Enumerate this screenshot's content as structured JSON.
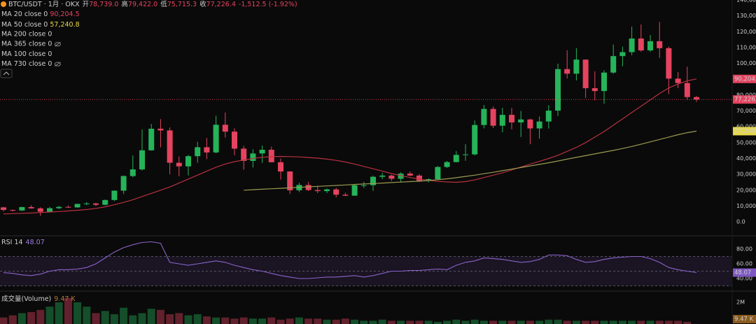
{
  "header": {
    "symbol": "BTC/USDT · 1月 · OKX",
    "open_label": "开",
    "open": "78,739.0",
    "high_label": "高",
    "high": "79,422.0",
    "low_label": "低",
    "low": "75,715.3",
    "close_label": "收",
    "close": "77,226.4",
    "change": "-1,512.5 (-1.92%)"
  },
  "chart_data": [
    {
      "type": "candlestick",
      "open": [
        9150,
        7540,
        7190,
        9350,
        8520,
        6410,
        8620,
        9450,
        9140,
        11330,
        11650,
        10780,
        13790,
        19700,
        28920,
        33110,
        45160,
        58800,
        57720,
        37300,
        35040,
        41460,
        47100,
        43820,
        61300,
        56950,
        46210,
        38470,
        43160,
        45510,
        37630,
        31800,
        19940,
        23290,
        20050,
        19420,
        20490,
        17160,
        16540,
        23120,
        23150,
        28450,
        29230,
        27210,
        30470,
        29230,
        25940,
        26960,
        34640,
        37720,
        42280,
        42580,
        61130,
        71280,
        60670,
        67540,
        62770,
        64620,
        58970,
        63330,
        70200,
        96400,
        93500,
        102400,
        84350,
        82550,
        94200,
        104600,
        107100,
        115700,
        108200,
        114000,
        109600,
        90400,
        87600,
        78739.0
      ],
      "high": [
        9510,
        7750,
        9580,
        10500,
        9190,
        9460,
        10080,
        10380,
        11440,
        12470,
        12070,
        14100,
        19860,
        29300,
        41950,
        58350,
        61790,
        64850,
        59600,
        41300,
        42300,
        50500,
        52950,
        67000,
        69000,
        59050,
        47990,
        45820,
        48190,
        47440,
        40000,
        31960,
        24670,
        25200,
        22800,
        21080,
        21480,
        18390,
        23960,
        25250,
        29190,
        31000,
        29820,
        31390,
        31800,
        30240,
        27480,
        35200,
        38450,
        44700,
        48970,
        64000,
        73800,
        72800,
        71980,
        71960,
        70000,
        65100,
        66500,
        73620,
        99800,
        108300,
        109600,
        102500,
        95000,
        95750,
        111900,
        110500,
        123200,
        124500,
        117900,
        126200,
        110600,
        94600,
        97900,
        79422.0
      ],
      "low": [
        6520,
        6430,
        6870,
        8450,
        3800,
        6150,
        8100,
        8830,
        8900,
        10520,
        9880,
        10370,
        13200,
        17570,
        28130,
        32300,
        44960,
        47000,
        30000,
        28800,
        29280,
        37330,
        39600,
        43280,
        53250,
        42000,
        32900,
        34300,
        37170,
        37580,
        26700,
        17600,
        18780,
        19520,
        18130,
        18190,
        15480,
        16270,
        16500,
        21350,
        19550,
        26940,
        25810,
        24800,
        28860,
        25170,
        24900,
        26550,
        34100,
        37600,
        38550,
        41880,
        59000,
        59190,
        56550,
        58400,
        53550,
        49000,
        52550,
        58900,
        66800,
        90500,
        89200,
        78200,
        76600,
        74500,
        93400,
        98200,
        105200,
        107300,
        107200,
        103500,
        80600,
        84400,
        77000,
        75715.3
      ],
      "close": [
        7540,
        7190,
        9350,
        8520,
        6410,
        8620,
        9450,
        9140,
        11330,
        11650,
        10780,
        13790,
        19700,
        28920,
        33110,
        45160,
        58800,
        57720,
        37300,
        35040,
        41460,
        47100,
        43820,
        61300,
        56950,
        46210,
        38470,
        43160,
        45510,
        37630,
        31800,
        19940,
        23290,
        20050,
        19420,
        20490,
        17160,
        16540,
        23120,
        23150,
        28450,
        29230,
        27210,
        30470,
        29230,
        25940,
        26960,
        34640,
        37720,
        42280,
        42580,
        61130,
        71280,
        60670,
        67540,
        62770,
        64620,
        58970,
        63330,
        70200,
        96400,
        93500,
        102400,
        84350,
        82550,
        94200,
        104600,
        107100,
        115700,
        108200,
        114000,
        109600,
        90400,
        87600,
        78739,
        77226.4
      ],
      "up_color": "#26b35a",
      "down_color": "#e5435f",
      "ylim": [
        -8800,
        140000
      ],
      "yticks": [
        {
          "value": 0,
          "label": "0.0"
        },
        {
          "value": 10000,
          "label": "10,000"
        },
        {
          "value": 20000,
          "label": "20,000"
        },
        {
          "value": 30000,
          "label": "30,000"
        },
        {
          "value": 40000,
          "label": "40,000"
        },
        {
          "value": 50000,
          "label": "50,000"
        },
        {
          "value": 60000,
          "label": "60,000"
        },
        {
          "value": 70000,
          "label": "70,000"
        },
        {
          "value": 80000,
          "label": "80,000"
        },
        {
          "value": 90000,
          "label": "90,000"
        },
        {
          "value": 100000,
          "label": "100,000"
        },
        {
          "value": 110000,
          "label": "110,000"
        },
        {
          "value": 120000,
          "label": "120,000"
        },
        {
          "value": 130000,
          "label": "130,000"
        },
        {
          "value": 140000,
          "label": "140,000"
        }
      ],
      "grid": false,
      "series": [
        {
          "name": "MA 20 close 0",
          "value_label": "90,204.5",
          "color": "#b8313f",
          "tag_color": "#e5435f",
          "values": [
            5000,
            5200,
            5400,
            5600,
            5900,
            6200,
            6500,
            6900,
            7300,
            7800,
            8500,
            9500,
            10800,
            12300,
            14000,
            16000,
            18000,
            20000,
            22000,
            24500,
            27000,
            29500,
            32000,
            34500,
            36500,
            38000,
            39000,
            40000,
            40800,
            41200,
            41300,
            41200,
            41000,
            40600,
            40200,
            39600,
            38800,
            37800,
            36500,
            35000,
            33500,
            32000,
            30500,
            29200,
            28000,
            27000,
            26200,
            25600,
            25200,
            25000,
            25400,
            26500,
            28000,
            29500,
            31000,
            32800,
            34600,
            36400,
            38200,
            40000,
            42000,
            44500,
            47000,
            50000,
            53500,
            57000,
            61000,
            65000,
            69000,
            73000,
            77000,
            81000,
            84500,
            87000,
            89000,
            90204.5
          ]
        },
        {
          "name": "MA 50 close 0",
          "value_label": "57,240.8",
          "color": "#9a9a52",
          "tag_color": "#e6d84a",
          "values": [
            null,
            null,
            null,
            null,
            null,
            null,
            null,
            null,
            null,
            null,
            null,
            null,
            null,
            null,
            null,
            null,
            null,
            null,
            null,
            null,
            null,
            null,
            null,
            null,
            null,
            null,
            20000,
            20300,
            20600,
            20900,
            21200,
            21500,
            21800,
            22100,
            22400,
            22700,
            23000,
            23300,
            23600,
            23900,
            24200,
            24500,
            24800,
            25100,
            25400,
            25700,
            26100,
            26600,
            27200,
            27900,
            28700,
            29500,
            30400,
            31300,
            32300,
            33300,
            34300,
            35300,
            36300,
            37300,
            38400,
            39600,
            40700,
            41800,
            42900,
            44000,
            45100,
            46300,
            47600,
            49000,
            50500,
            52000,
            53500,
            55000,
            56300,
            57240.8
          ]
        }
      ],
      "hidden_indicators": [
        "MA 200 close 0",
        "MA 365 close 0",
        "MA 100 close 0",
        "MA 730 close 0"
      ]
    },
    {
      "type": "line",
      "title": "RSI 14",
      "last_label": "48.07",
      "color": "#8a63c9",
      "values": [
        48,
        47,
        45,
        44,
        46,
        50,
        52,
        52,
        53,
        55,
        60,
        68,
        76,
        82,
        86,
        89,
        90,
        88,
        62,
        60,
        58,
        60,
        62,
        64,
        62,
        58,
        55,
        52,
        50,
        47,
        44,
        42,
        40,
        40,
        41,
        42,
        42,
        43,
        44,
        42,
        44,
        47,
        50,
        50,
        51,
        51,
        52,
        53,
        52,
        58,
        62,
        64,
        68,
        67,
        66,
        64,
        62,
        63,
        66,
        72,
        72,
        71,
        66,
        62,
        63,
        66,
        68,
        69,
        70,
        70,
        67,
        62,
        55,
        52,
        50,
        48.07
      ],
      "ylim": [
        26.7,
        95.2
      ],
      "yticks": [
        {
          "value": 80,
          "label": "80.00"
        },
        {
          "value": 60,
          "label": "60.00"
        },
        {
          "value": 40,
          "label": "40.00"
        }
      ],
      "levels": [
        70,
        50,
        30
      ]
    },
    {
      "type": "bar",
      "title": "成交量(Volume)",
      "last_label": "9.47 K",
      "values": [
        600000,
        800000,
        1000000,
        1100000,
        1300000,
        1600000,
        2000000,
        2400000,
        2000000,
        1600000,
        1000000,
        1200000,
        900000,
        1500000,
        800000,
        1000000,
        1400000,
        1300000,
        900000,
        1000000,
        800000,
        900000,
        700000,
        600000,
        600000,
        500000,
        600000,
        500000,
        500000,
        600000,
        400000,
        500000,
        600000,
        500000,
        500000,
        400000,
        400000,
        500000,
        400000,
        300000,
        300000,
        400000,
        300000,
        300000,
        300000,
        300000,
        300000,
        200000,
        300000,
        400000,
        300000,
        400000,
        300000,
        300000,
        300000,
        300000,
        300000,
        300000,
        300000,
        400000,
        400000,
        300000,
        300000,
        300000,
        300000,
        300000,
        300000,
        300000,
        300000,
        300000,
        300000,
        300000,
        300000,
        300000,
        200000,
        9470
      ],
      "ylim": [
        0,
        2900000
      ],
      "yticks": [
        {
          "value": 2000000,
          "label": "2M"
        }
      ]
    }
  ]
}
